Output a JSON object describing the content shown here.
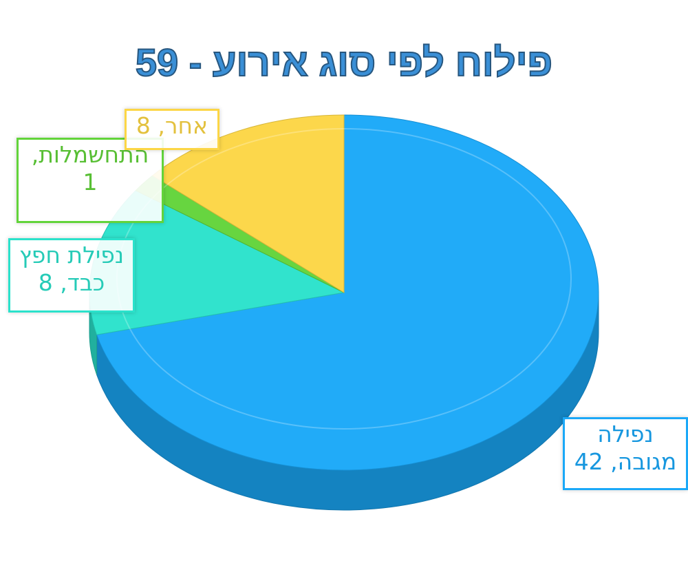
{
  "chart_data": {
    "type": "pie",
    "title": "פילוח לפי סוג אירוע - 59",
    "values": [
      42,
      8,
      1,
      8
    ],
    "value_labels": [
      "נפילה מגובה, 42",
      "נפילת חפץ כבד, 8",
      "התחשמלות, 1",
      "אחר, 8"
    ],
    "colors": [
      "#1aa8f8",
      "#2ae2cb",
      "#62d43a",
      "#fcd645"
    ]
  }
}
